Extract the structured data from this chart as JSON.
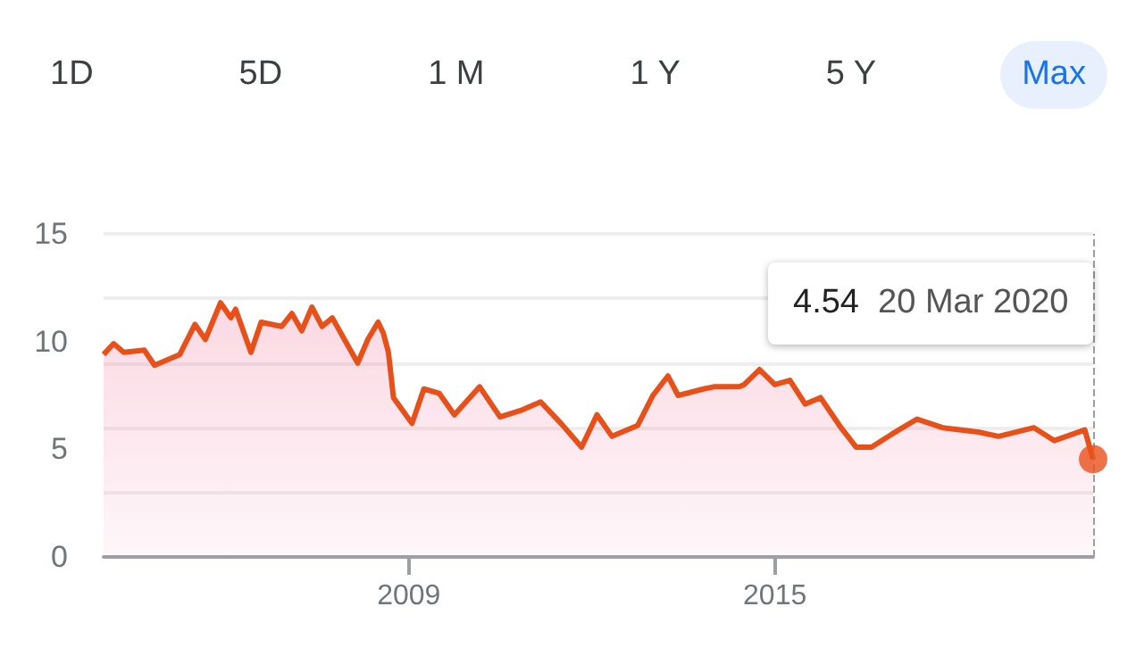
{
  "chart_data": {
    "type": "area",
    "x": [
      "2004-01",
      "2004-03",
      "2004-05",
      "2004-09",
      "2004-11",
      "2005-04",
      "2005-07",
      "2005-09",
      "2005-12",
      "2006-02",
      "2006-03",
      "2006-06",
      "2006-08",
      "2006-12",
      "2007-02",
      "2007-04",
      "2007-06",
      "2007-08",
      "2007-10",
      "2008-03",
      "2008-05",
      "2008-07",
      "2008-08",
      "2008-09",
      "2008-10",
      "2009-01-20",
      "2009-04",
      "2009-07",
      "2009-10",
      "2010-03",
      "2010-07",
      "2010-11",
      "2011-03",
      "2011-07",
      "2011-11",
      "2012-02",
      "2012-05",
      "2012-10",
      "2013-01",
      "2013-04",
      "2013-06",
      "2013-11",
      "2014-01",
      "2014-03",
      "2014-06",
      "2014-07",
      "2014-10",
      "2015-01",
      "2015-04",
      "2015-07",
      "2015-10",
      "2016-02",
      "2016-05",
      "2016-08",
      "2016-12",
      "2017-05",
      "2017-10",
      "2018-05",
      "2018-09",
      "2019-04",
      "2019-08",
      "2020-01-30",
      "2020-03-20"
    ],
    "series": [
      {
        "color": "#e8501a",
        "values": [
          9.4,
          9.9,
          9.5,
          9.6,
          8.9,
          9.4,
          10.8,
          10.1,
          11.8,
          11.1,
          11.5,
          9.5,
          10.9,
          10.7,
          11.3,
          10.5,
          11.6,
          10.7,
          11.1,
          9.0,
          10.1,
          10.9,
          10.4,
          9.5,
          7.4,
          6.2,
          7.8,
          7.6,
          6.6,
          7.9,
          6.5,
          6.8,
          7.2,
          6.2,
          5.1,
          6.6,
          5.6,
          6.1,
          7.5,
          8.4,
          7.5,
          7.8,
          7.9,
          7.9,
          7.9,
          8.0,
          8.7,
          8.0,
          8.2,
          7.1,
          7.4,
          6.0,
          5.1,
          5.1,
          5.7,
          6.4,
          6.0,
          5.8,
          5.6,
          6.0,
          5.4,
          5.9,
          4.54
        ]
      },
      {
        "type": "scatter",
        "marker": "circle",
        "color": "#e8501a",
        "x": [
          "2020-03-20"
        ],
        "values": [
          4.54
        ]
      }
    ],
    "marker": "none",
    "xlim": [
      "2004-01",
      "2020-03-20"
    ],
    "xticks": [
      "2009",
      "2015"
    ],
    "ylim": [
      0,
      15
    ],
    "yticks": [
      0,
      5,
      10,
      15
    ],
    "grid": "y",
    "ref_lines": [
      {
        "axis": "x",
        "value": "2020-03-20",
        "color": "#9e9e9e",
        "line_style": "dashed"
      }
    ],
    "annotations": [
      "1D",
      "5D",
      "1 M",
      "1 Y",
      "5 Y",
      "Max",
      "4.54  20 Mar 2020"
    ]
  }
}
